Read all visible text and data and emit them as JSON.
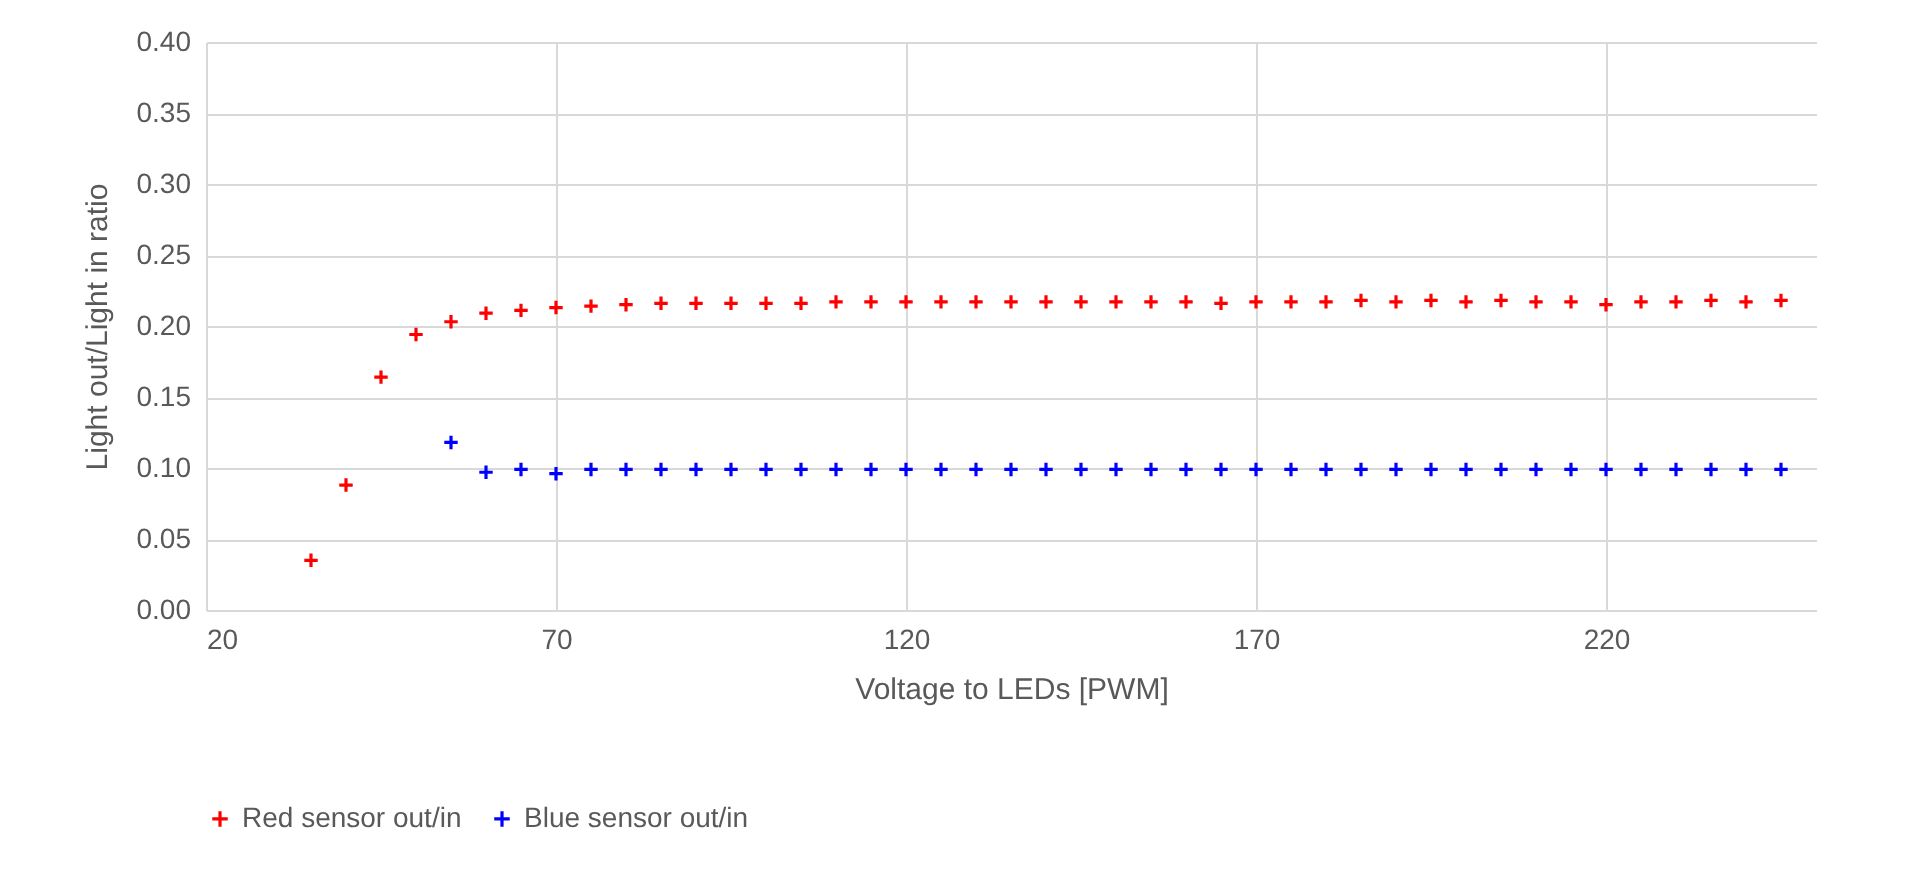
{
  "chart_data": {
    "type": "scatter",
    "xlabel": "Voltage to LEDs [PWM]",
    "ylabel": "Light out/Light in ratio",
    "xlim": [
      20,
      250
    ],
    "xticks": [
      20,
      70,
      120,
      170,
      220
    ],
    "ylim": [
      0,
      0.4
    ],
    "yticks": [
      {
        "value": 0,
        "label": "0.00"
      },
      0.05,
      {
        "value": 0.1,
        "label": "0.10"
      },
      0.15,
      {
        "value": 0.2,
        "label": "0.20"
      },
      0.25,
      {
        "value": 0.3,
        "label": "0.30"
      },
      0.35,
      {
        "value": 0.4,
        "label": "0.40"
      }
    ],
    "grid": true,
    "legend": "bottom",
    "marker": "cross",
    "series": [
      {
        "name": "Red sensor out/in",
        "color": "#ff0000",
        "x": [
          35,
          40,
          45,
          50,
          55,
          60,
          65,
          70,
          75,
          80,
          85,
          90,
          95,
          100,
          105,
          110,
          115,
          120,
          125,
          130,
          135,
          140,
          145,
          150,
          155,
          160,
          165,
          170,
          175,
          180,
          185,
          190,
          195,
          200,
          205,
          210,
          215,
          220,
          225,
          230,
          235,
          240,
          245
        ],
        "values": [
          0.035,
          0.088,
          0.164,
          0.194,
          0.203,
          0.209,
          0.211,
          0.213,
          0.214,
          0.215,
          0.216,
          0.216,
          0.216,
          0.216,
          0.216,
          0.217,
          0.217,
          0.217,
          0.217,
          0.217,
          0.217,
          0.217,
          0.217,
          0.217,
          0.217,
          0.217,
          0.216,
          0.217,
          0.217,
          0.217,
          0.218,
          0.217,
          0.218,
          0.217,
          0.218,
          0.217,
          0.217,
          0.215,
          0.217,
          0.217,
          0.218,
          0.217,
          0.218
        ]
      },
      {
        "name": "Blue sensor out/in",
        "color": "#0000ff",
        "x": [
          55,
          60,
          65,
          70,
          75,
          80,
          85,
          90,
          95,
          100,
          105,
          110,
          115,
          120,
          125,
          130,
          135,
          140,
          145,
          150,
          155,
          160,
          165,
          170,
          175,
          180,
          185,
          190,
          195,
          200,
          205,
          210,
          215,
          220,
          225,
          230,
          235,
          240,
          245
        ],
        "values": [
          0.118,
          0.097,
          0.099,
          0.096,
          0.099,
          0.099,
          0.099,
          0.099,
          0.099,
          0.099,
          0.099,
          0.099,
          0.099,
          0.099,
          0.099,
          0.099,
          0.099,
          0.099,
          0.099,
          0.099,
          0.099,
          0.099,
          0.099,
          0.099,
          0.099,
          0.099,
          0.099,
          0.099,
          0.099,
          0.099,
          0.099,
          0.099,
          0.099,
          0.099,
          0.099,
          0.099,
          0.099,
          0.099,
          0.099
        ]
      }
    ]
  }
}
